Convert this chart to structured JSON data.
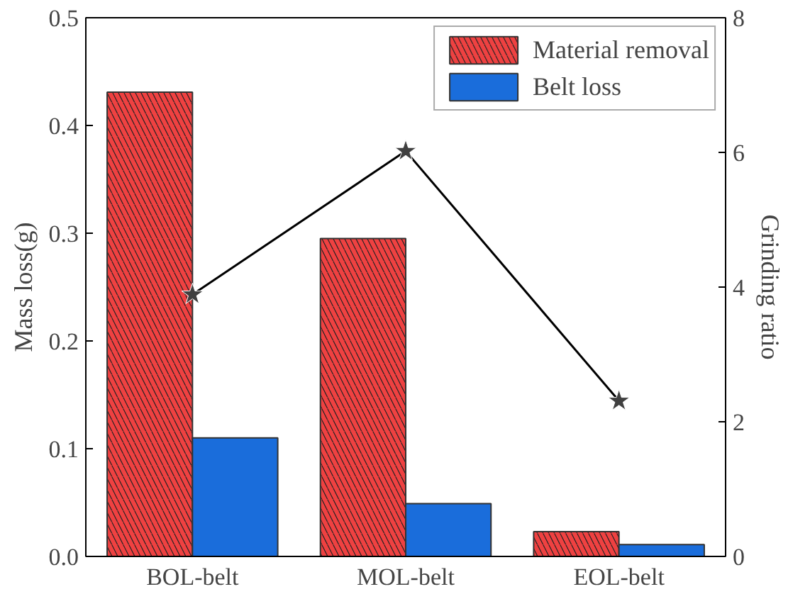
{
  "chart_data": {
    "type": "bar",
    "categories": [
      "BOL-belt",
      "MOL-belt",
      "EOL-belt"
    ],
    "ylabel": "Mass loss(g)",
    "y2label": "Grinding ratio",
    "ylim": [
      0,
      0.5
    ],
    "yticks": [
      {
        "value": 0,
        "label": "0.0"
      },
      0.1,
      0.2,
      0.3,
      0.4,
      0.5
    ],
    "y2lim": [
      0,
      8
    ],
    "y2ticks": [
      0,
      2,
      4,
      6,
      8
    ],
    "legend": "top right",
    "marker": "star",
    "series": [
      {
        "name": "Material removal",
        "color": "#ef4141",
        "values": [
          0.431,
          0.295,
          0.023
        ]
      },
      {
        "name": "Belt loss",
        "color": "#1a6ddb",
        "values": [
          0.11,
          0.049,
          0.011
        ]
      },
      {
        "type": "line",
        "axis": "y2",
        "color": "#404040",
        "values": [
          3.89,
          6.02,
          2.31
        ]
      }
    ]
  }
}
